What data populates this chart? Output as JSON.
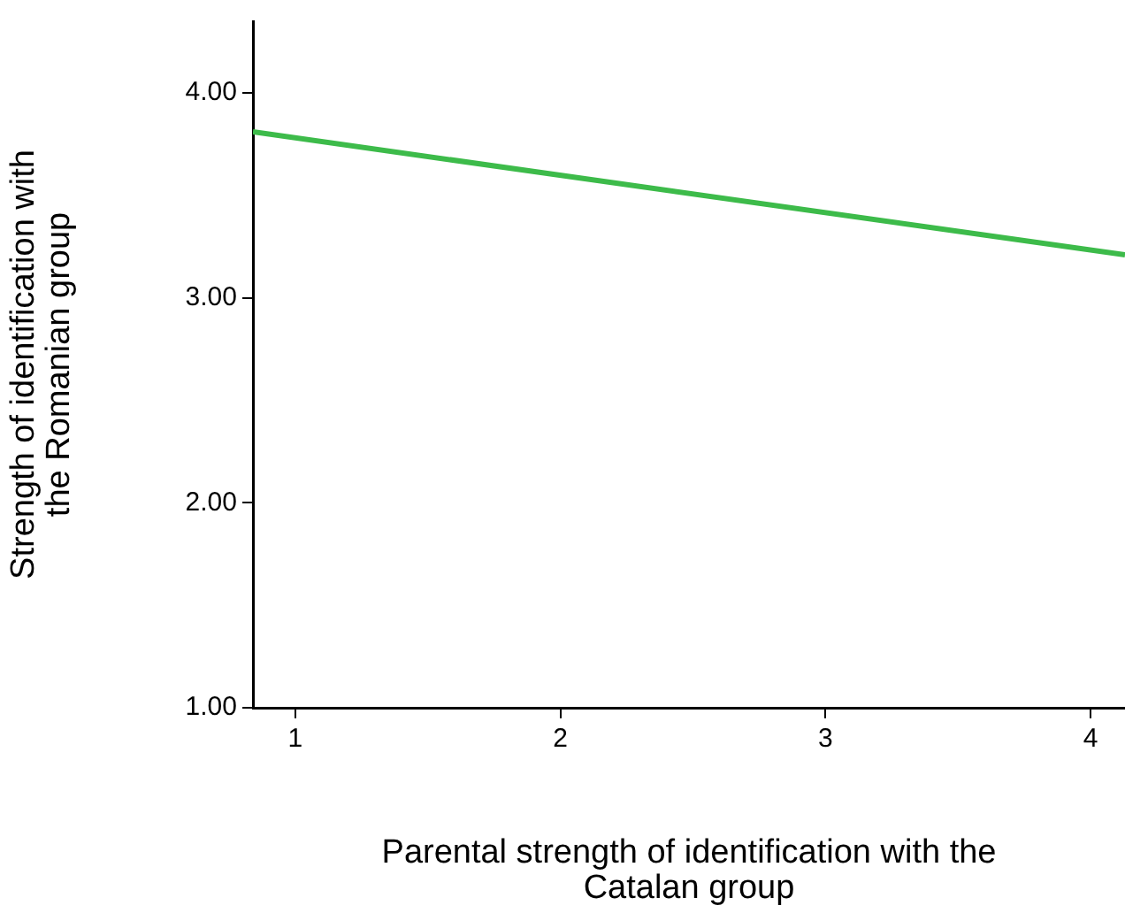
{
  "chart_data": {
    "type": "line",
    "xlabel": "Parental strength of identification with the Catalan group",
    "ylabel": "Strength of identification with the Romanian group",
    "x": [
      0.84,
      4.13
    ],
    "series": [
      {
        "color": "#3dbb4a",
        "values": [
          3.81,
          3.21
        ]
      }
    ],
    "xlim": [
      0.84,
      4.13
    ],
    "xticks": [
      1,
      2,
      3,
      4
    ],
    "ylim": [
      1,
      4.35
    ],
    "yticks": [
      {
        "value": 1,
        "label": "1.00"
      },
      {
        "value": 2,
        "label": "2.00"
      },
      {
        "value": 3,
        "label": "3.00"
      },
      {
        "value": 4,
        "label": "4.00"
      }
    ],
    "grid": false,
    "legend": false,
    "marker": "none",
    "line_style": "solid"
  }
}
